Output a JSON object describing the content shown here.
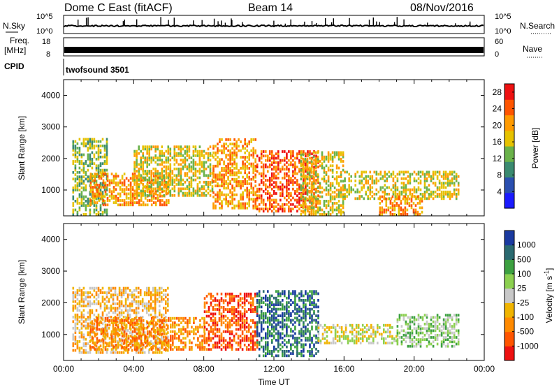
{
  "header": {
    "station": "Dome C East (fitACF)",
    "beam": "Beam 14",
    "date": "08/Nov/2016"
  },
  "top_panels": {
    "nsky_label": "N.Sky",
    "nsky_ticks": [
      "10^5",
      "10^0"
    ],
    "nsky_right_ticks": [
      "10^5",
      "10^0"
    ],
    "nsearch_label": "N.Search",
    "freq_label_1": "Freq.",
    "freq_label_2": "[MHz]",
    "freq_ticks": [
      "18",
      "8"
    ],
    "nave_ticks": [
      "60",
      "0"
    ],
    "nave_label": "Nave",
    "cpid_label": "CPID",
    "cpid_text": "twofsound 3501"
  },
  "colors": {
    "power": [
      "#1a1aff",
      "#2a4fb0",
      "#3a8a70",
      "#6ab24a",
      "#e6c200",
      "#ff9a00",
      "#ff5500",
      "#ee1111"
    ],
    "velocity": [
      "#ee1111",
      "#ff5500",
      "#ff8a00",
      "#f0b400",
      "#c8c8c8",
      "#8cd050",
      "#3ca040",
      "#2a6a70",
      "#1a3aa0"
    ]
  },
  "chart_data": [
    {
      "type": "heatmap",
      "name": "power",
      "xlabel": "",
      "ylabel": "Slant Range [km]",
      "x_range": [
        "00:00",
        "00:00"
      ],
      "ylim": [
        180,
        4500
      ],
      "yticks": [
        1000,
        2000,
        3000,
        4000
      ],
      "colorbar": {
        "label": "Power [dB]",
        "ticks": [
          4,
          8,
          12,
          16,
          20,
          24,
          28
        ],
        "range": [
          0,
          30
        ]
      },
      "regions": [
        {
          "t0": 0.5,
          "t1": 2.5,
          "r0": 200,
          "r1": 2600,
          "level": 3
        },
        {
          "t0": 1.5,
          "t1": 6.0,
          "r0": 500,
          "r1": 1500,
          "level": 5
        },
        {
          "t0": 4.0,
          "t1": 8.5,
          "r0": 800,
          "r1": 2400,
          "level": 4
        },
        {
          "t0": 8.5,
          "t1": 11.0,
          "r0": 400,
          "r1": 2600,
          "level": 5
        },
        {
          "t0": 11.0,
          "t1": 14.5,
          "r0": 300,
          "r1": 2200,
          "level": 6
        },
        {
          "t0": 13.5,
          "t1": 16.0,
          "r0": 200,
          "r1": 2200,
          "level": 4
        },
        {
          "t0": 16.0,
          "t1": 22.5,
          "r0": 700,
          "r1": 1600,
          "level": 4
        },
        {
          "t0": 18.0,
          "t1": 20.5,
          "r0": 200,
          "r1": 800,
          "level": 5
        }
      ]
    },
    {
      "type": "heatmap",
      "name": "velocity",
      "xlabel": "Time UT",
      "ylabel": "Slant Range [km]",
      "x_range": [
        "00:00",
        "00:00"
      ],
      "xticks": [
        "00:00",
        "04:00",
        "08:00",
        "12:00",
        "16:00",
        "20:00",
        "00:00"
      ],
      "ylim": [
        180,
        4500
      ],
      "yticks": [
        1000,
        2000,
        3000,
        4000
      ],
      "colorbar": {
        "label": "Velocity [m s-1]",
        "label_main": "Velocity",
        "label_unit": "[m s",
        "label_sup": "-1",
        "label_close": "]",
        "ticks": [
          -1000,
          -500,
          -100,
          -25,
          25,
          100,
          500,
          1000
        ],
        "tick_labels": [
          "-1000",
          "-500",
          "-100",
          "-25",
          "25",
          "100",
          "500",
          "1000"
        ]
      },
      "regions": [
        {
          "t0": 0.5,
          "t1": 6.0,
          "r0": 400,
          "r1": 2500,
          "level": 3
        },
        {
          "t0": 1.5,
          "t1": 8.0,
          "r0": 500,
          "r1": 1500,
          "level": 2
        },
        {
          "t0": 8.0,
          "t1": 11.0,
          "r0": 500,
          "r1": 2300,
          "level": 1
        },
        {
          "t0": 11.0,
          "t1": 14.5,
          "r0": 300,
          "r1": 2400,
          "level": 7
        },
        {
          "t0": 14.5,
          "t1": 19.0,
          "r0": 700,
          "r1": 1300,
          "level": 4
        },
        {
          "t0": 19.0,
          "t1": 22.5,
          "r0": 600,
          "r1": 1600,
          "level": 5
        }
      ]
    }
  ]
}
